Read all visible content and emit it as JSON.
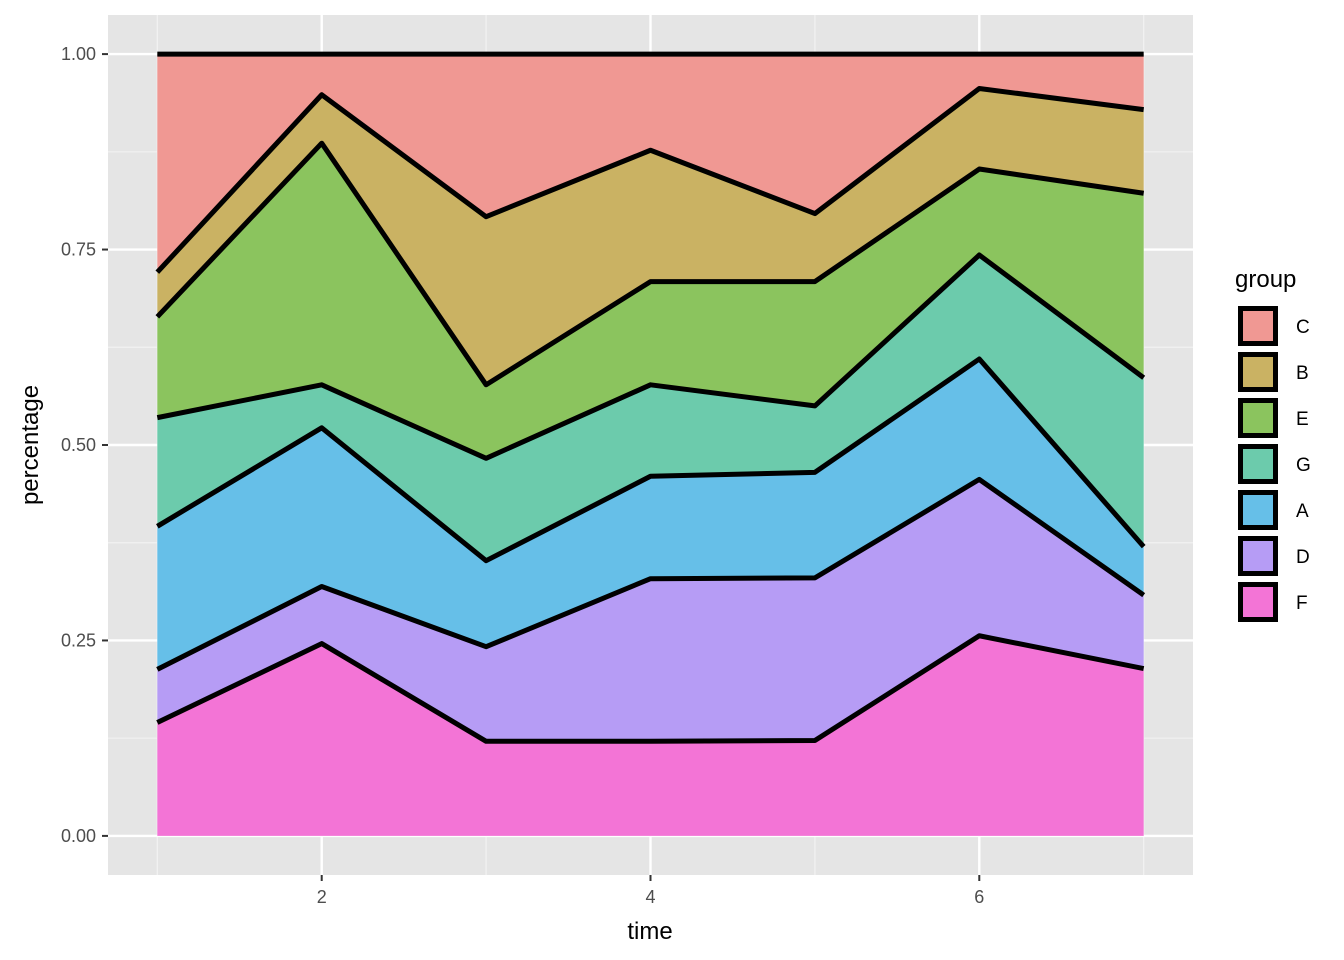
{
  "chart_data": {
    "type": "area",
    "stacking": "percent",
    "xlabel": "time",
    "ylabel": "percentage",
    "x": [
      1,
      2,
      3,
      4,
      5,
      6,
      7
    ],
    "xlim": [
      0.7,
      7.3
    ],
    "ylim": [
      -0.05,
      1.05
    ],
    "xticks": [
      2,
      4,
      6
    ],
    "yticks": [
      0,
      0.25,
      0.5,
      0.75,
      1
    ],
    "ytick_labels": [
      "0.00",
      "0.25",
      "0.50",
      "0.75",
      "1.00"
    ],
    "grid": true,
    "legend": {
      "title": "group",
      "position": "right"
    },
    "series": [
      {
        "name": "F",
        "color": "#F374D6",
        "values": [
          0.145,
          0.246,
          0.121,
          0.121,
          0.122,
          0.256,
          0.214
        ]
      },
      {
        "name": "D",
        "color": "#B69CF5",
        "values": [
          0.068,
          0.073,
          0.121,
          0.208,
          0.208,
          0.2,
          0.094
        ]
      },
      {
        "name": "A",
        "color": "#66BFE8",
        "values": [
          0.183,
          0.203,
          0.11,
          0.131,
          0.135,
          0.154,
          0.062
        ]
      },
      {
        "name": "G",
        "color": "#6CCBAC",
        "values": [
          0.139,
          0.055,
          0.131,
          0.117,
          0.085,
          0.133,
          0.216
        ]
      },
      {
        "name": "E",
        "color": "#8BC45E",
        "values": [
          0.129,
          0.309,
          0.094,
          0.132,
          0.159,
          0.11,
          0.236
        ]
      },
      {
        "name": "B",
        "color": "#CAB263",
        "values": [
          0.057,
          0.062,
          0.215,
          0.168,
          0.087,
          0.103,
          0.107
        ]
      },
      {
        "name": "C",
        "color": "#F09893",
        "values": [
          0.279,
          0.052,
          0.208,
          0.123,
          0.204,
          0.044,
          0.071
        ]
      }
    ],
    "legend_order": [
      "C",
      "B",
      "E",
      "G",
      "A",
      "D",
      "F"
    ]
  }
}
